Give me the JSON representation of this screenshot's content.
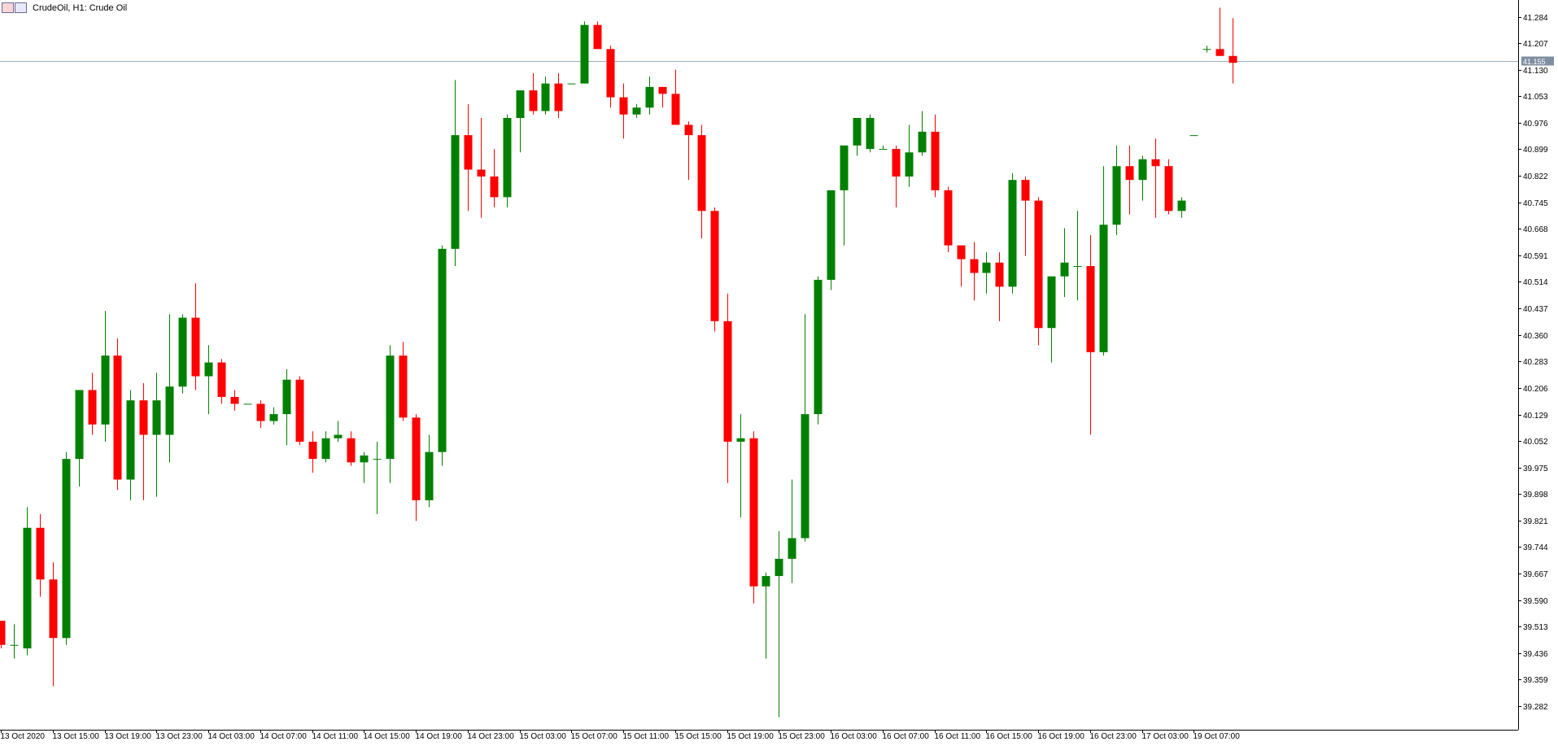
{
  "window": {
    "title": "CrudeOil, H1:  Crude Oil",
    "icon": "chart-window-icon"
  },
  "colors": {
    "bull": "#008000",
    "bear": "#ff0000",
    "grid_line": "#000000",
    "current_price_line": "#a0b4c0",
    "current_price_tag": "#7f8ea0",
    "background": "#ffffff"
  },
  "chart_data": {
    "type": "candlestick",
    "symbol": "CrudeOil",
    "timeframe": "H1",
    "description": "Crude Oil",
    "current_price": 41.155,
    "current_price_label": "41.155",
    "ylim": [
      39.23,
      41.34
    ],
    "y_ticks": [
      "41.284",
      "41.207",
      "41.130",
      "41.053",
      "40.976",
      "40.899",
      "40.822",
      "40.745",
      "40.668",
      "40.591",
      "40.514",
      "40.437",
      "40.360",
      "40.283",
      "40.206",
      "40.129",
      "40.052",
      "39.975",
      "39.898",
      "39.821",
      "39.744",
      "39.667",
      "39.590",
      "39.513",
      "39.436",
      "39.359",
      "39.282"
    ],
    "x_ticks": [
      {
        "index": 0,
        "label": "13 Oct 2020"
      },
      {
        "index": 4,
        "label": "13 Oct 15:00"
      },
      {
        "index": 8,
        "label": "13 Oct 19:00"
      },
      {
        "index": 12,
        "label": "13 Oct 23:00"
      },
      {
        "index": 16,
        "label": "14 Oct 03:00"
      },
      {
        "index": 20,
        "label": "14 Oct 07:00"
      },
      {
        "index": 24,
        "label": "14 Oct 11:00"
      },
      {
        "index": 28,
        "label": "14 Oct 15:00"
      },
      {
        "index": 32,
        "label": "14 Oct 19:00"
      },
      {
        "index": 36,
        "label": "14 Oct 23:00"
      },
      {
        "index": 40,
        "label": "15 Oct 03:00"
      },
      {
        "index": 44,
        "label": "15 Oct 07:00"
      },
      {
        "index": 48,
        "label": "15 Oct 11:00"
      },
      {
        "index": 52,
        "label": "15 Oct 15:00"
      },
      {
        "index": 56,
        "label": "15 Oct 19:00"
      },
      {
        "index": 60,
        "label": "15 Oct 23:00"
      },
      {
        "index": 64,
        "label": "16 Oct 03:00"
      },
      {
        "index": 68,
        "label": "16 Oct 07:00"
      },
      {
        "index": 72,
        "label": "16 Oct 11:00"
      },
      {
        "index": 76,
        "label": "16 Oct 15:00"
      },
      {
        "index": 80,
        "label": "16 Oct 19:00"
      },
      {
        "index": 84,
        "label": "16 Oct 23:00"
      },
      {
        "index": 88,
        "label": "17 Oct 03:00"
      },
      {
        "index": 92,
        "label": "19 Oct 07:00"
      }
    ],
    "candles": [
      {
        "o": 39.53,
        "h": 39.53,
        "l": 39.45,
        "c": 39.46
      },
      {
        "o": 39.46,
        "h": 39.52,
        "l": 39.42,
        "c": 39.46
      },
      {
        "o": 39.45,
        "h": 39.86,
        "l": 39.43,
        "c": 39.8
      },
      {
        "o": 39.8,
        "h": 39.84,
        "l": 39.6,
        "c": 39.65
      },
      {
        "o": 39.65,
        "h": 39.7,
        "l": 39.34,
        "c": 39.48
      },
      {
        "o": 39.48,
        "h": 40.02,
        "l": 39.46,
        "c": 40.0
      },
      {
        "o": 40.0,
        "h": 40.2,
        "l": 39.92,
        "c": 40.2
      },
      {
        "o": 40.2,
        "h": 40.25,
        "l": 40.07,
        "c": 40.1
      },
      {
        "o": 40.1,
        "h": 40.43,
        "l": 40.05,
        "c": 40.3
      },
      {
        "o": 40.3,
        "h": 40.35,
        "l": 39.91,
        "c": 39.94
      },
      {
        "o": 39.94,
        "h": 40.2,
        "l": 39.88,
        "c": 40.17
      },
      {
        "o": 40.17,
        "h": 40.22,
        "l": 39.88,
        "c": 40.07
      },
      {
        "o": 40.07,
        "h": 40.25,
        "l": 39.89,
        "c": 40.17
      },
      {
        "o": 40.07,
        "h": 40.42,
        "l": 39.99,
        "c": 40.21
      },
      {
        "o": 40.21,
        "h": 40.42,
        "l": 40.19,
        "c": 40.41
      },
      {
        "o": 40.41,
        "h": 40.51,
        "l": 40.2,
        "c": 40.24
      },
      {
        "o": 40.24,
        "h": 40.33,
        "l": 40.13,
        "c": 40.28
      },
      {
        "o": 40.28,
        "h": 40.29,
        "l": 40.16,
        "c": 40.18
      },
      {
        "o": 40.18,
        "h": 40.2,
        "l": 40.14,
        "c": 40.16
      },
      {
        "o": 40.16,
        "h": 40.16,
        "l": 40.16,
        "c": 40.16
      },
      {
        "o": 40.16,
        "h": 40.17,
        "l": 40.09,
        "c": 40.11
      },
      {
        "o": 40.11,
        "h": 40.15,
        "l": 40.1,
        "c": 40.13
      },
      {
        "o": 40.13,
        "h": 40.26,
        "l": 40.04,
        "c": 40.23
      },
      {
        "o": 40.23,
        "h": 40.24,
        "l": 40.04,
        "c": 40.05
      },
      {
        "o": 40.05,
        "h": 40.08,
        "l": 39.96,
        "c": 40.0
      },
      {
        "o": 40.0,
        "h": 40.08,
        "l": 39.99,
        "c": 40.06
      },
      {
        "o": 40.06,
        "h": 40.11,
        "l": 40.05,
        "c": 40.07
      },
      {
        "o": 40.06,
        "h": 40.08,
        "l": 39.98,
        "c": 39.99
      },
      {
        "o": 39.99,
        "h": 40.02,
        "l": 39.93,
        "c": 40.01
      },
      {
        "o": 40.0,
        "h": 40.05,
        "l": 39.84,
        "c": 40.0
      },
      {
        "o": 40.0,
        "h": 40.33,
        "l": 39.93,
        "c": 40.3
      },
      {
        "o": 40.3,
        "h": 40.34,
        "l": 40.11,
        "c": 40.12
      },
      {
        "o": 40.12,
        "h": 40.13,
        "l": 39.82,
        "c": 39.88
      },
      {
        "o": 39.88,
        "h": 40.07,
        "l": 39.86,
        "c": 40.02
      },
      {
        "o": 40.02,
        "h": 40.62,
        "l": 39.98,
        "c": 40.61
      },
      {
        "o": 40.61,
        "h": 41.1,
        "l": 40.56,
        "c": 40.94
      },
      {
        "o": 40.94,
        "h": 41.03,
        "l": 40.72,
        "c": 40.84
      },
      {
        "o": 40.84,
        "h": 40.99,
        "l": 40.7,
        "c": 40.82
      },
      {
        "o": 40.82,
        "h": 40.9,
        "l": 40.73,
        "c": 40.76
      },
      {
        "o": 40.76,
        "h": 41.0,
        "l": 40.73,
        "c": 40.99
      },
      {
        "o": 40.99,
        "h": 41.07,
        "l": 40.89,
        "c": 41.07
      },
      {
        "o": 41.07,
        "h": 41.12,
        "l": 41.0,
        "c": 41.01
      },
      {
        "o": 41.01,
        "h": 41.11,
        "l": 41.0,
        "c": 41.09
      },
      {
        "o": 41.09,
        "h": 41.12,
        "l": 40.99,
        "c": 41.01
      },
      {
        "o": 41.09,
        "h": 41.09,
        "l": 41.09,
        "c": 41.09
      },
      {
        "o": 41.09,
        "h": 41.27,
        "l": 41.09,
        "c": 41.26
      },
      {
        "o": 41.26,
        "h": 41.27,
        "l": 41.19,
        "c": 41.19
      },
      {
        "o": 41.19,
        "h": 41.2,
        "l": 41.02,
        "c": 41.05
      },
      {
        "o": 41.05,
        "h": 41.09,
        "l": 40.93,
        "c": 41.0
      },
      {
        "o": 41.0,
        "h": 41.03,
        "l": 40.99,
        "c": 41.02
      },
      {
        "o": 41.02,
        "h": 41.11,
        "l": 41.0,
        "c": 41.08
      },
      {
        "o": 41.08,
        "h": 41.08,
        "l": 41.02,
        "c": 41.06
      },
      {
        "o": 41.06,
        "h": 41.13,
        "l": 40.97,
        "c": 40.97
      },
      {
        "o": 40.97,
        "h": 40.98,
        "l": 40.81,
        "c": 40.94
      },
      {
        "o": 40.94,
        "h": 40.97,
        "l": 40.64,
        "c": 40.72
      },
      {
        "o": 40.72,
        "h": 40.73,
        "l": 40.37,
        "c": 40.4
      },
      {
        "o": 40.4,
        "h": 40.48,
        "l": 39.93,
        "c": 40.05
      },
      {
        "o": 40.05,
        "h": 40.13,
        "l": 39.83,
        "c": 40.06
      },
      {
        "o": 40.06,
        "h": 40.08,
        "l": 39.58,
        "c": 39.63
      },
      {
        "o": 39.63,
        "h": 39.67,
        "l": 39.42,
        "c": 39.66
      },
      {
        "o": 39.66,
        "h": 39.79,
        "l": 39.25,
        "c": 39.71
      },
      {
        "o": 39.71,
        "h": 39.94,
        "l": 39.64,
        "c": 39.77
      },
      {
        "o": 39.77,
        "h": 40.42,
        "l": 39.76,
        "c": 40.13
      },
      {
        "o": 40.13,
        "h": 40.53,
        "l": 40.1,
        "c": 40.52
      },
      {
        "o": 40.52,
        "h": 40.78,
        "l": 40.49,
        "c": 40.78
      },
      {
        "o": 40.78,
        "h": 40.91,
        "l": 40.62,
        "c": 40.91
      },
      {
        "o": 40.91,
        "h": 40.99,
        "l": 40.88,
        "c": 40.99
      },
      {
        "o": 40.9,
        "h": 41.0,
        "l": 40.89,
        "c": 40.99
      },
      {
        "o": 40.9,
        "h": 40.91,
        "l": 40.9,
        "c": 40.9
      },
      {
        "o": 40.9,
        "h": 40.91,
        "l": 40.73,
        "c": 40.82
      },
      {
        "o": 40.82,
        "h": 40.97,
        "l": 40.79,
        "c": 40.89
      },
      {
        "o": 40.89,
        "h": 41.01,
        "l": 40.88,
        "c": 40.95
      },
      {
        "o": 40.95,
        "h": 41.0,
        "l": 40.76,
        "c": 40.78
      },
      {
        "o": 40.78,
        "h": 40.79,
        "l": 40.6,
        "c": 40.62
      },
      {
        "o": 40.62,
        "h": 40.62,
        "l": 40.5,
        "c": 40.58
      },
      {
        "o": 40.58,
        "h": 40.63,
        "l": 40.46,
        "c": 40.54
      },
      {
        "o": 40.54,
        "h": 40.6,
        "l": 40.48,
        "c": 40.57
      },
      {
        "o": 40.57,
        "h": 40.6,
        "l": 40.4,
        "c": 40.5
      },
      {
        "o": 40.5,
        "h": 40.83,
        "l": 40.48,
        "c": 40.81
      },
      {
        "o": 40.81,
        "h": 40.82,
        "l": 40.59,
        "c": 40.75
      },
      {
        "o": 40.75,
        "h": 40.76,
        "l": 40.33,
        "c": 40.38
      },
      {
        "o": 40.38,
        "h": 40.53,
        "l": 40.28,
        "c": 40.53
      },
      {
        "o": 40.53,
        "h": 40.67,
        "l": 40.47,
        "c": 40.57
      },
      {
        "o": 40.56,
        "h": 40.72,
        "l": 40.46,
        "c": 40.56
      },
      {
        "o": 40.56,
        "h": 40.65,
        "l": 40.07,
        "c": 40.31
      },
      {
        "o": 40.31,
        "h": 40.85,
        "l": 40.3,
        "c": 40.68
      },
      {
        "o": 40.68,
        "h": 40.91,
        "l": 40.65,
        "c": 40.85
      },
      {
        "o": 40.85,
        "h": 40.91,
        "l": 40.71,
        "c": 40.81
      },
      {
        "o": 40.81,
        "h": 40.88,
        "l": 40.75,
        "c": 40.87
      },
      {
        "o": 40.87,
        "h": 40.93,
        "l": 40.7,
        "c": 40.85
      },
      {
        "o": 40.85,
        "h": 40.87,
        "l": 40.71,
        "c": 40.72
      },
      {
        "o": 40.72,
        "h": 40.76,
        "l": 40.7,
        "c": 40.75
      },
      {
        "o": 40.94,
        "h": 40.94,
        "l": 40.94,
        "c": 40.94
      },
      {
        "o": 41.19,
        "h": 41.2,
        "l": 41.18,
        "c": 41.19
      },
      {
        "o": 41.19,
        "h": 41.31,
        "l": 41.17,
        "c": 41.17
      },
      {
        "o": 41.17,
        "h": 41.28,
        "l": 41.09,
        "c": 41.15
      }
    ]
  }
}
